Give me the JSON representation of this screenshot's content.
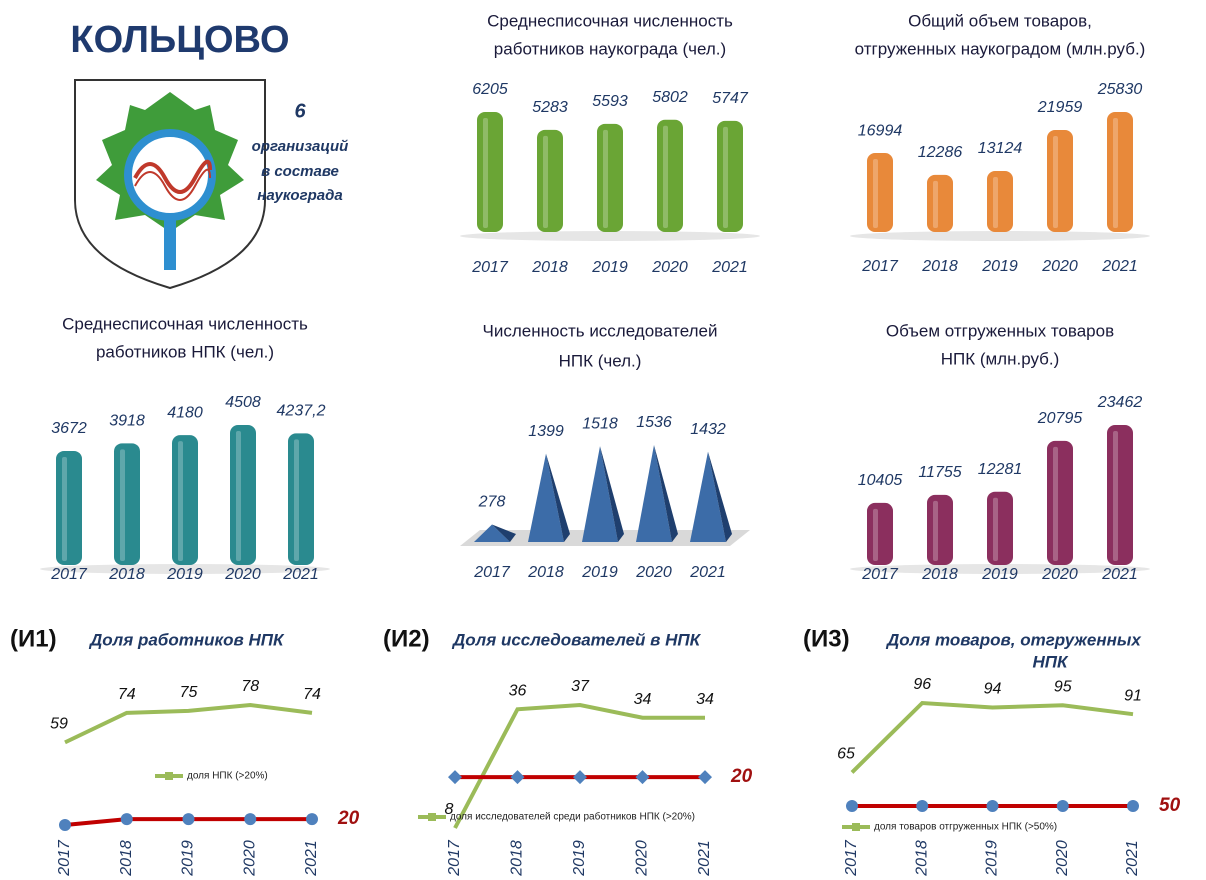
{
  "header": {
    "title": "КОЛЬЦОВО",
    "count": 6,
    "count_caption": [
      "организаций",
      "в составе",
      "наукограда"
    ]
  },
  "chart_data": [
    {
      "type": "bar",
      "title": [
        "Среднесписочная численность",
        "работников наукограда (чел.)"
      ],
      "categories": [
        "2017",
        "2018",
        "2019",
        "2020",
        "2021"
      ],
      "values": [
        6205,
        5283,
        5593,
        5802,
        5747
      ],
      "color": "#6aa535"
    },
    {
      "type": "bar",
      "title": [
        "Общий объем товаров,",
        "отгруженных наукоградом (млн.руб.)"
      ],
      "categories": [
        "2017",
        "2018",
        "2019",
        "2020",
        "2021"
      ],
      "values": [
        16994,
        12286,
        13124,
        21959,
        25830
      ],
      "color": "#e8893a"
    },
    {
      "type": "bar",
      "title": [
        "Среднесписочная численность",
        "работников НПК (чел.)"
      ],
      "categories": [
        "2017",
        "2018",
        "2019",
        "2020",
        "2021"
      ],
      "values": [
        3672,
        3918,
        4180,
        4508,
        4237.2
      ],
      "value_labels": [
        "3672",
        "3918",
        "4180",
        "4508",
        "4237,2"
      ],
      "color": "#2a8a8f"
    },
    {
      "type": "pyramid",
      "title": [
        "Численность исследователей",
        "НПК (чел.)"
      ],
      "categories": [
        "2017",
        "2018",
        "2019",
        "2020",
        "2021"
      ],
      "values": [
        278,
        1399,
        1518,
        1536,
        1432
      ],
      "color": "#3c6ca8"
    },
    {
      "type": "bar",
      "title": [
        "Объем отгруженных товаров",
        "НПК (млн.руб.)"
      ],
      "categories": [
        "2017",
        "2018",
        "2019",
        "2020",
        "2021"
      ],
      "values": [
        10405,
        11755,
        12281,
        20795,
        23462
      ],
      "color": "#8b2f5e"
    },
    {
      "type": "line",
      "prefix": "(И1)",
      "title": [
        "Доля работников НПК"
      ],
      "categories": [
        "2017",
        "2018",
        "2019",
        "2020",
        "2021"
      ],
      "series": [
        {
          "name": "доля НПК (>20%)",
          "color": "#9bbb59",
          "values": [
            59,
            74,
            75,
            78,
            74
          ]
        },
        {
          "color": "#c00000",
          "marker": "circle",
          "values": [
            17,
            20,
            20,
            20,
            20
          ]
        }
      ]
    },
    {
      "type": "line",
      "prefix": "(И2)",
      "title": [
        "Доля исследователей в НПК"
      ],
      "categories": [
        "2017",
        "2018",
        "2019",
        "2020",
        "2021"
      ],
      "series": [
        {
          "name": "доля исследователей среди работников НПК (>20%)",
          "color": "#9bbb59",
          "values": [
            8,
            36,
            37,
            34,
            34
          ]
        },
        {
          "color": "#c00000",
          "marker": "diamond",
          "values": [
            20,
            20,
            20,
            20,
            20
          ]
        }
      ]
    },
    {
      "type": "line",
      "prefix": "(И3)",
      "title": [
        "Доля товаров, отгруженных",
        "НПК"
      ],
      "categories": [
        "2017",
        "2018",
        "2019",
        "2020",
        "2021"
      ],
      "series": [
        {
          "name": "доля товаров  отгруженных  НПК (>50%)",
          "color": "#9bbb59",
          "values": [
            65,
            96,
            94,
            95,
            91
          ]
        },
        {
          "color": "#c00000",
          "marker": "circle",
          "values": [
            50,
            50,
            50,
            50,
            50
          ]
        }
      ]
    }
  ]
}
